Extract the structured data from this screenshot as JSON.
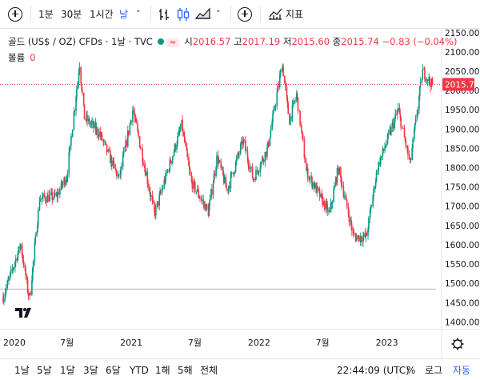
{
  "toolbar": {
    "add_symbol_icon": "plus-circle-icon",
    "intervals": [
      "1분",
      "30분",
      "1시간",
      "날"
    ],
    "active_interval": "날",
    "indicators_label": "지표",
    "chevron": "˅"
  },
  "legend": {
    "symbol": "골드 (US$ / OZ) CFDs · 1날 · TVC",
    "badge": "≈",
    "open_label": "시",
    "open": "2016.57",
    "high_label": "고",
    "high": "2017.19",
    "low_label": "저",
    "low": "2015.60",
    "close_label": "종",
    "close": "2015.74",
    "change": "−0.83 (−0.04%)",
    "volume_label": "볼륨",
    "volume_value": "0"
  },
  "colors": {
    "up": "#089981",
    "down": "#f23645",
    "accent": "#2962ff",
    "price_line": "#f23645"
  },
  "chart_data": {
    "type": "candlestick",
    "title": "골드 (US$ / OZ) CFDs · 1날 · TVC",
    "x_ticks": [
      "2020",
      "7월",
      "2021",
      "7월",
      "2022",
      "7월",
      "2023"
    ],
    "y_ticks": [
      1400,
      1450,
      1500,
      1550,
      1600,
      1650,
      1700,
      1750,
      1800,
      1850,
      1900,
      1950,
      2000,
      2050,
      2100,
      2150
    ],
    "ylim": [
      1380,
      2160
    ],
    "last_price": 2015.74,
    "reference_level": 1485,
    "series": [
      {
        "name": "가격",
        "path_points": [
          [
            "2020-01-01",
            1465
          ],
          [
            "2020-02-20",
            1600
          ],
          [
            "2020-03-16",
            1455
          ],
          [
            "2020-04-14",
            1720
          ],
          [
            "2020-06-01",
            1725
          ],
          [
            "2020-07-01",
            1780
          ],
          [
            "2020-08-06",
            2070
          ],
          [
            "2020-08-20",
            1930
          ],
          [
            "2020-10-01",
            1890
          ],
          [
            "2020-11-27",
            1770
          ],
          [
            "2021-01-05",
            1950
          ],
          [
            "2021-03-08",
            1680
          ],
          [
            "2021-05-25",
            1910
          ],
          [
            "2021-06-20",
            1765
          ],
          [
            "2021-08-09",
            1685
          ],
          [
            "2021-09-03",
            1830
          ],
          [
            "2021-10-01",
            1740
          ],
          [
            "2021-11-16",
            1870
          ],
          [
            "2021-12-15",
            1770
          ],
          [
            "2022-01-25",
            1850
          ],
          [
            "2022-03-08",
            2070
          ],
          [
            "2022-03-28",
            1920
          ],
          [
            "2022-04-18",
            1990
          ],
          [
            "2022-05-16",
            1790
          ],
          [
            "2022-07-21",
            1680
          ],
          [
            "2022-08-15",
            1800
          ],
          [
            "2022-09-28",
            1620
          ],
          [
            "2022-11-03",
            1620
          ],
          [
            "2022-12-05",
            1800
          ],
          [
            "2023-02-02",
            1950
          ],
          [
            "2023-03-08",
            1810
          ],
          [
            "2023-04-13",
            2050
          ],
          [
            "2023-05-10",
            2015
          ]
        ]
      }
    ]
  },
  "bottombar": {
    "ranges": [
      "1날",
      "5날",
      "1달",
      "3달",
      "6달",
      "YTD",
      "1해",
      "5해",
      "전체"
    ],
    "time": "22:44:09 (UTC)",
    "percent": "%",
    "log": "로그",
    "auto": "자동",
    "settings_icon": "gear-icon"
  }
}
